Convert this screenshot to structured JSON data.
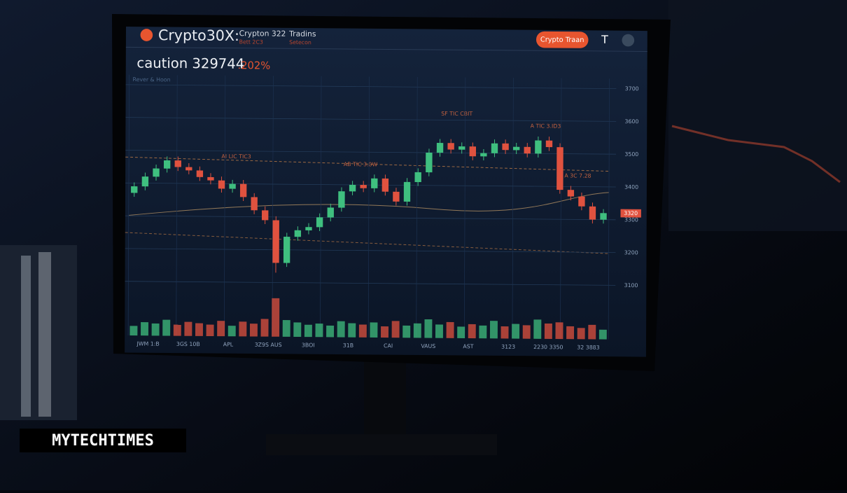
{
  "header": {
    "brand": "Crypto30X:",
    "pair": "Crypton 322",
    "pair_sub": "Bett 2C3",
    "mode": "Tradins",
    "mode_sub": "Setecon",
    "button": "Crypto Traan",
    "icon": "T"
  },
  "ticker": {
    "label": "caution 329744",
    "change": ".202%",
    "sub": "Rever & Hoon"
  },
  "annotations": [
    "SF TIC CBIT",
    "AB TIC 3.0W",
    "AI LIC TIC3",
    "A TIC 3.ID3",
    "A 3C 7.28"
  ],
  "watermark": "MYTECHTIMES",
  "chart_data": {
    "type": "candlestick",
    "open": [
      3370,
      3390,
      3420,
      3445,
      3470,
      3450,
      3440,
      3420,
      3410,
      3385,
      3400,
      3360,
      3320,
      3290,
      3160,
      3240,
      3260,
      3270,
      3300,
      3330,
      3380,
      3400,
      3390,
      3420,
      3380,
      3350,
      3410,
      3440,
      3500,
      3530,
      3510,
      3520,
      3490,
      3500,
      3530,
      3510,
      3520,
      3500,
      3540,
      3520,
      3390,
      3370,
      3340,
      3300
    ],
    "close": [
      3390,
      3420,
      3445,
      3470,
      3450,
      3440,
      3420,
      3410,
      3385,
      3400,
      3360,
      3320,
      3290,
      3160,
      3240,
      3260,
      3270,
      3300,
      3330,
      3380,
      3400,
      3390,
      3420,
      3380,
      3350,
      3410,
      3440,
      3500,
      3530,
      3510,
      3520,
      3490,
      3500,
      3530,
      3510,
      3520,
      3500,
      3540,
      3520,
      3390,
      3370,
      3340,
      3300,
      3320
    ],
    "high": [
      3402,
      3432,
      3457,
      3482,
      3482,
      3462,
      3452,
      3432,
      3422,
      3412,
      3412,
      3372,
      3332,
      3302,
      3252,
      3272,
      3282,
      3312,
      3342,
      3392,
      3412,
      3412,
      3432,
      3432,
      3392,
      3422,
      3452,
      3512,
      3542,
      3542,
      3532,
      3532,
      3512,
      3542,
      3542,
      3532,
      3532,
      3552,
      3552,
      3532,
      3402,
      3382,
      3352,
      3332
    ],
    "low": [
      3358,
      3378,
      3408,
      3433,
      3438,
      3428,
      3408,
      3398,
      3373,
      3373,
      3348,
      3308,
      3278,
      3130,
      3148,
      3228,
      3248,
      3258,
      3288,
      3318,
      3368,
      3378,
      3378,
      3368,
      3338,
      3338,
      3398,
      3428,
      3488,
      3498,
      3498,
      3478,
      3478,
      3488,
      3498,
      3498,
      3488,
      3488,
      3508,
      3378,
      3358,
      3328,
      3288,
      3288
    ],
    "volume": [
      30,
      42,
      38,
      50,
      35,
      44,
      40,
      36,
      48,
      33,
      46,
      40,
      55,
      120,
      52,
      45,
      38,
      42,
      36,
      50,
      44,
      40,
      47,
      35,
      52,
      38,
      45,
      58,
      42,
      50,
      36,
      44,
      40,
      55,
      38,
      46,
      42,
      60,
      48,
      52,
      40,
      35,
      45,
      30
    ],
    "ylim": [
      3050,
      3720
    ],
    "yticks": [
      3100,
      3200,
      3300,
      3400,
      3500,
      3600,
      3700
    ],
    "volume_lim": [
      0,
      150
    ],
    "x_labels": [
      "JWM 1:B",
      "3GS 10B",
      "APL",
      "3Z9S AUS",
      "3BOI",
      "31B",
      "CAI",
      "VAUS",
      "AST",
      "3123",
      "2230 3350",
      "32 3883"
    ],
    "up_color": "#3fbf7f",
    "down_color": "#e0523f",
    "grid": true
  }
}
